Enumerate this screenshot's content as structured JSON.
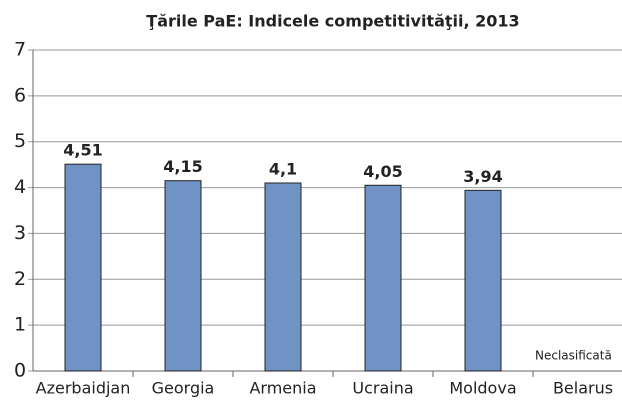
{
  "chart_data": {
    "type": "bar",
    "title": "Ţările PaE: Indicele competitivităţii, 2013",
    "categories": [
      "Azerbaidjan",
      "Georgia",
      "Armenia",
      "Ucraina",
      "Moldova",
      "Belarus"
    ],
    "values": [
      4.51,
      4.15,
      4.1,
      4.05,
      3.94,
      null
    ],
    "value_labels": [
      "4,51",
      "4,15",
      "4,1",
      "4,05",
      "3,94",
      null
    ],
    "annotation": "Neclasificată",
    "color": "#7092c4",
    "ylim": [
      0,
      7
    ],
    "yticks": [
      0,
      1,
      2,
      3,
      4,
      5,
      6,
      7
    ],
    "grid": true
  }
}
